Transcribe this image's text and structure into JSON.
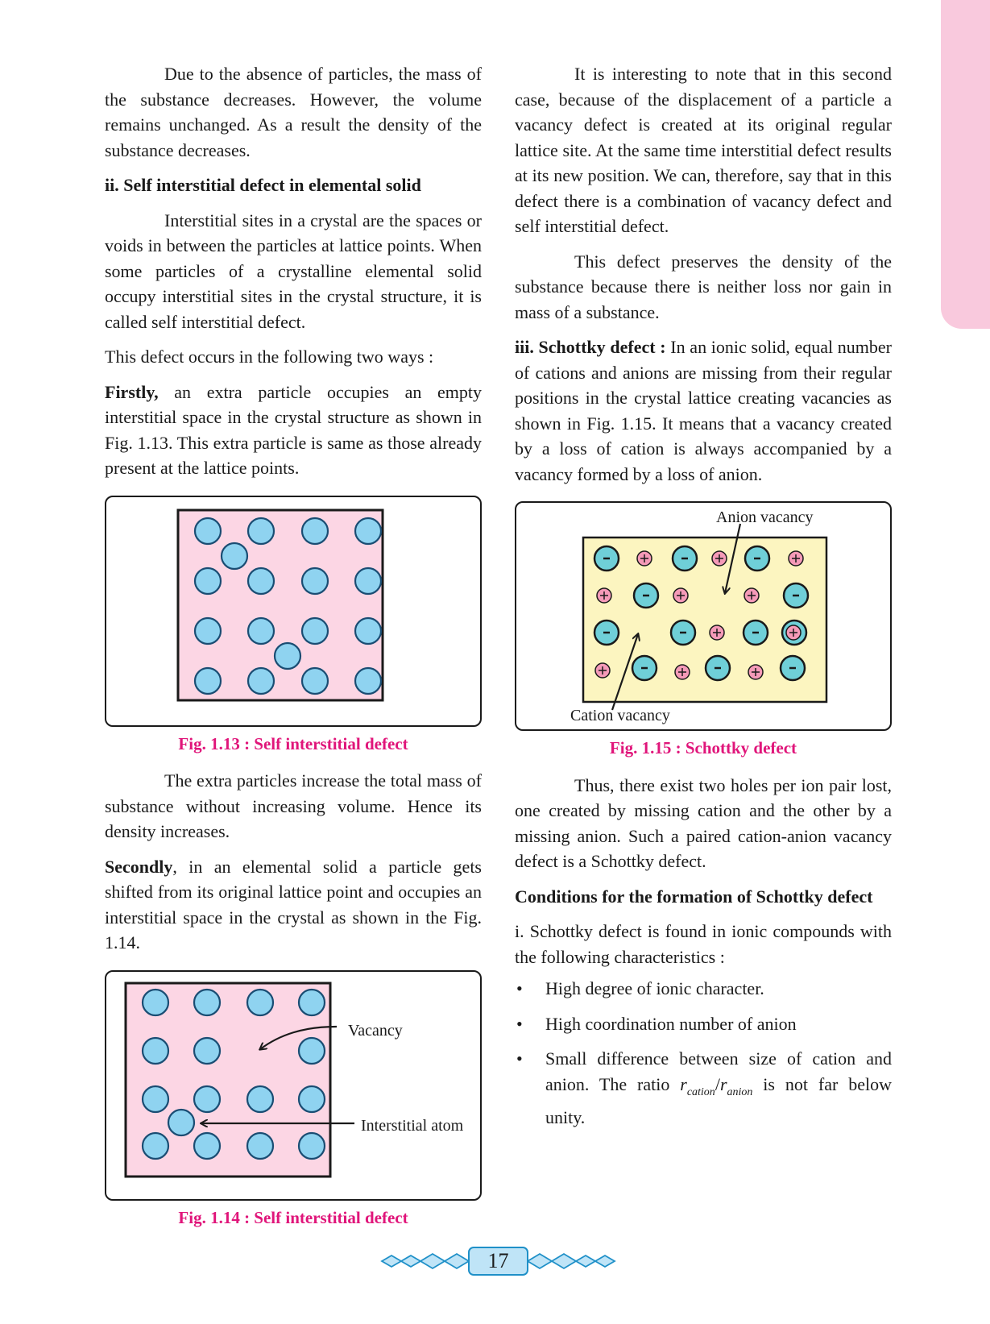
{
  "page_number": "17",
  "left": {
    "p1": "Due to the absence of particles, the mass of the substance decreases. However, the volume remains unchanged. As a result the density of the substance decreases.",
    "h_self": "ii. Self interstitial defect in elemental solid",
    "p2": "Interstitial sites in a crystal are the spaces or voids in between the particles at lattice points. When some particles of a crystalline elemental solid occupy interstitial sites in the crystal structure, it is called self interstitial defect.",
    "p3": "This defect occurs in the following two ways :",
    "p4_bold": "Firstly,",
    "p4": " an extra particle occupies an empty interstitial space in the crystal structure as shown in Fig. 1.13. This extra particle is same as those already present at the lattice points.",
    "fig13_caption": "Fig. 1.13 : Self interstitial defect",
    "p5": "The extra particles increase the total mass of substance without increasing volume. Hence its density increases.",
    "p6_bold": "Secondly",
    "p6": ", in an elemental solid a particle gets shifted from its original lattice point and occupies an interstitial space in the crystal as shown in the Fig. 1.14.",
    "fig14_label_vacancy": "Vacancy",
    "fig14_label_interstitial": "Interstitial atom",
    "fig14_caption": "Fig. 1.14 : Self interstitial defect"
  },
  "right": {
    "p1": "It is interesting to note that in this second case, because of the displacement of a particle a vacancy defect is created at its original regular lattice site. At the same time interstitial defect results at its new position. We can, therefore, say that in this defect there is a combination of vacancy defect and self interstitial defect.",
    "p2": "This defect preserves the density of the substance because there is neither loss nor gain in mass of a substance.",
    "p3_bold": "iii. Schottky defect :",
    "p3": " In an ionic solid, equal number of cations and anions are missing from their regular positions in the crystal lattice creating vacancies as shown in Fig. 1.15. It means that a vacancy created by a loss of cation is always accompanied by a vacancy formed by a loss of anion.",
    "fig15_label_anion": "Anion vacancy",
    "fig15_label_cation": "Cation vacancy",
    "fig15_caption": "Fig. 1.15 : Schottky defect",
    "p4": "Thus, there exist two holes per ion pair lost, one created by missing cation and the other by a missing anion. Such a paired cation-anion vacancy defect is a Schottky defect.",
    "h_cond": "Conditions for the formation of Schottky defect",
    "p5": "i. Schottky defect is found in ionic compounds with the following characteristics :",
    "bullets": [
      "High degree of ionic character.",
      "High coordination number of anion"
    ],
    "b3_pre": "Small difference between size of cation and anion. The ratio ",
    "b3_r1": "r",
    "b3_s1": "cation",
    "b3_slash": "/",
    "b3_r2": "r",
    "b3_s2": "anion",
    "b3_post": " is not far below unity."
  },
  "colors": {
    "caption": "#e0157a",
    "crystal_pink": "#fcd6e4",
    "atom_blue": "#8fd3f0",
    "ionic_yellow": "#fcf5c0",
    "anion_teal": "#6fcfd8",
    "cation_pink": "#f59ab8",
    "tab_pink": "#f9c9dd"
  }
}
